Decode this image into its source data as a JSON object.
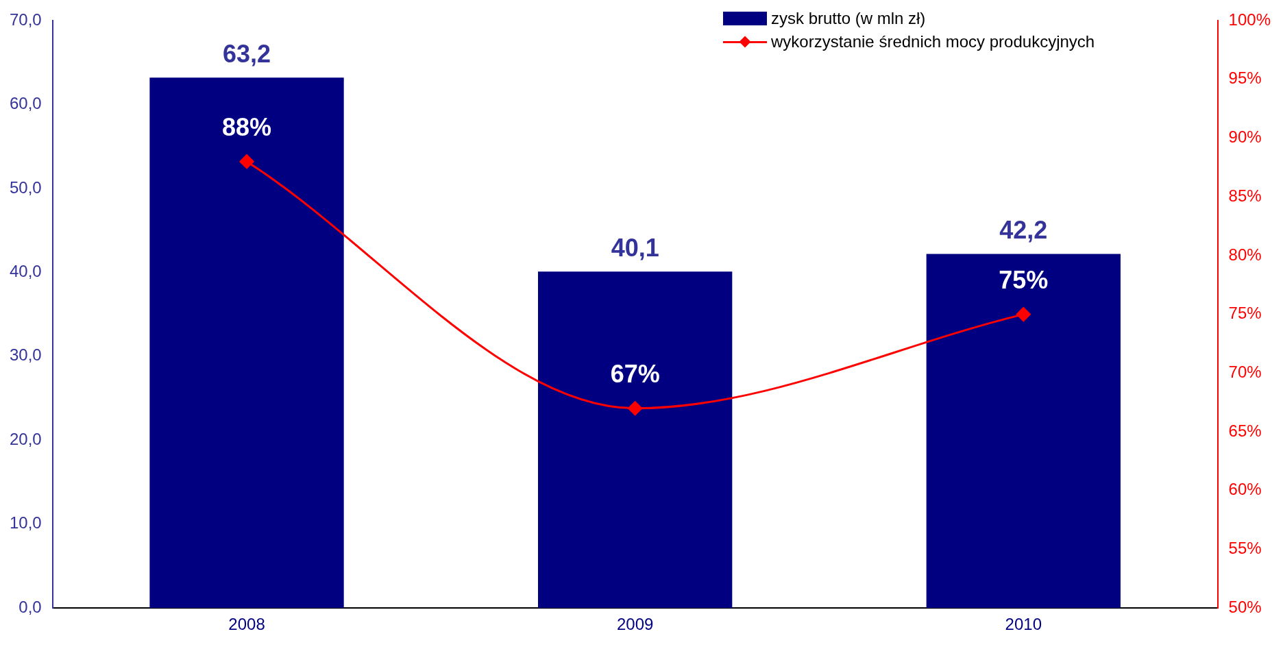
{
  "chart_data": {
    "type": "bar",
    "categories": [
      "2008",
      "2009",
      "2010"
    ],
    "series": [
      {
        "name": "zysk brutto (w mln zł)",
        "color": "#000080",
        "values": [
          63.2,
          40.1,
          42.2
        ],
        "value_labels": [
          "63,2",
          "40,1",
          "42,2"
        ]
      },
      {
        "name": "wykorzystanie średnich mocy produkcyjnych",
        "type": "line",
        "axis": "y2",
        "color": "#ff0000",
        "values": [
          88,
          67,
          75
        ],
        "value_labels": [
          "88%",
          "67%",
          "75%"
        ],
        "marker": "diamond"
      }
    ],
    "ylim": [
      0,
      70
    ],
    "yticks": [
      {
        "value": 0,
        "label": "0,0"
      },
      {
        "value": 10,
        "label": "10,0"
      },
      {
        "value": 20,
        "label": "20,0"
      },
      {
        "value": 30,
        "label": "30,0"
      },
      {
        "value": 40,
        "label": "40,0"
      },
      {
        "value": 50,
        "label": "50,0"
      },
      {
        "value": 60,
        "label": "60,0"
      },
      {
        "value": 70,
        "label": "70,0"
      }
    ],
    "y2lim": [
      50,
      100
    ],
    "y2ticks": [
      {
        "value": 50,
        "label": "50%"
      },
      {
        "value": 55,
        "label": "55%"
      },
      {
        "value": 60,
        "label": "60%"
      },
      {
        "value": 65,
        "label": "65%"
      },
      {
        "value": 70,
        "label": "70%"
      },
      {
        "value": 75,
        "label": "75%"
      },
      {
        "value": 80,
        "label": "80%"
      },
      {
        "value": 85,
        "label": "85%"
      },
      {
        "value": 90,
        "label": "90%"
      },
      {
        "value": 95,
        "label": "95%"
      },
      {
        "value": 100,
        "label": "100%"
      }
    ],
    "grid": false,
    "legend": "top right"
  }
}
